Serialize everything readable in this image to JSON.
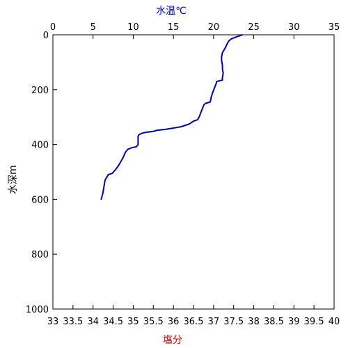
{
  "chart_data": {
    "type": "line",
    "top_axis": {
      "label": "水温℃",
      "label_color": "#0000cc",
      "range": [
        0,
        35
      ],
      "ticks": [
        "0",
        "5",
        "10",
        "15",
        "20",
        "25",
        "30",
        "35"
      ]
    },
    "bottom_axis": {
      "label": "塩分",
      "label_color": "#cc0000",
      "range": [
        33,
        40
      ],
      "ticks": [
        "33",
        "33.5",
        "34",
        "34.5",
        "35",
        "35.5",
        "36",
        "36.5",
        "37",
        "37.5",
        "38",
        "38.5",
        "39",
        "39.5",
        "40"
      ]
    },
    "left_axis": {
      "label": "水深m",
      "range": [
        0,
        1000
      ],
      "inverted": true,
      "ticks": [
        "0",
        "200",
        "400",
        "600",
        "800",
        "1000"
      ]
    },
    "grid": false,
    "series": [
      {
        "axis": "top",
        "color": "#0000aa",
        "points": [
          [
            23.6,
            0
          ],
          [
            23.3,
            3
          ],
          [
            22.8,
            8
          ],
          [
            22.2,
            15
          ],
          [
            21.9,
            22
          ],
          [
            21.7,
            32
          ],
          [
            21.5,
            45
          ],
          [
            21.3,
            55
          ],
          [
            21.1,
            65
          ],
          [
            21.0,
            80
          ],
          [
            21.0,
            95
          ],
          [
            21.1,
            110
          ],
          [
            21.1,
            125
          ],
          [
            21.2,
            140
          ],
          [
            21.1,
            155
          ],
          [
            21.1,
            165
          ],
          [
            20.7,
            168
          ],
          [
            20.4,
            170
          ],
          [
            20.3,
            180
          ],
          [
            20.1,
            195
          ],
          [
            19.9,
            210
          ],
          [
            19.7,
            228
          ],
          [
            19.6,
            245
          ],
          [
            19.0,
            250
          ],
          [
            18.8,
            255
          ],
          [
            18.6,
            270
          ],
          [
            18.4,
            285
          ],
          [
            18.2,
            300
          ],
          [
            18.0,
            310
          ],
          [
            17.5,
            315
          ],
          [
            17.0,
            325
          ],
          [
            16.5,
            330
          ],
          [
            16.0,
            335
          ],
          [
            15.0,
            340
          ],
          [
            14.0,
            345
          ],
          [
            13.0,
            348
          ],
          [
            12.5,
            352
          ],
          [
            11.5,
            356
          ],
          [
            11.0,
            360
          ],
          [
            10.7,
            365
          ],
          [
            10.6,
            370
          ],
          [
            10.6,
            385
          ],
          [
            10.6,
            400
          ],
          [
            10.4,
            408
          ],
          [
            9.8,
            412
          ],
          [
            9.3,
            418
          ],
          [
            9.0,
            430
          ],
          [
            8.7,
            450
          ],
          [
            8.4,
            465
          ],
          [
            8.1,
            480
          ],
          [
            7.7,
            495
          ],
          [
            7.4,
            505
          ],
          [
            6.9,
            510
          ],
          [
            6.7,
            520
          ],
          [
            6.5,
            530
          ],
          [
            6.4,
            545
          ],
          [
            6.3,
            565
          ],
          [
            6.2,
            580
          ],
          [
            6.1,
            590
          ],
          [
            6.0,
            600
          ]
        ]
      }
    ]
  }
}
